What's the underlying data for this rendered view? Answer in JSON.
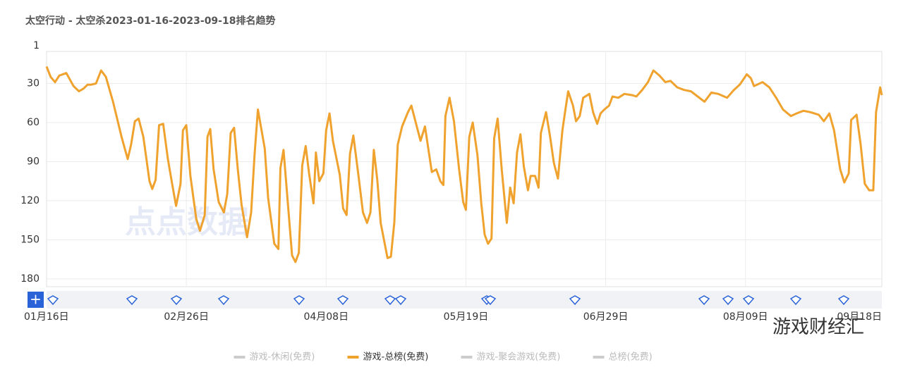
{
  "chart_data": {
    "type": "line",
    "title": "太空行动 - 太空杀2023-01-16-2023-09-18排名趋势",
    "y_inverted": true,
    "grid": true,
    "ylim": [
      0,
      186
    ],
    "yticks": [
      1,
      30,
      60,
      90,
      120,
      150,
      180
    ],
    "xlim": [
      0,
      245
    ],
    "xticks": [
      {
        "value": 0,
        "label": "01月16日"
      },
      {
        "value": 41,
        "label": "02月26日"
      },
      {
        "value": 82,
        "label": "04月08日"
      },
      {
        "value": 123,
        "label": "05月19日"
      },
      {
        "value": 164,
        "label": "06月29日"
      },
      {
        "value": 205,
        "label": "08月09日"
      },
      {
        "value": 245,
        "label": "09月18日"
      }
    ],
    "legend": [
      {
        "name": "游戏-休闲(免费)",
        "color": "#cccccc"
      },
      {
        "name": "游戏-总榜(免费)",
        "color": "#f0a22e"
      },
      {
        "name": "游戏-聚会游戏(免费)",
        "color": "#cccccc"
      },
      {
        "name": "总榜(免费)",
        "color": "#cccccc"
      }
    ],
    "series": [
      {
        "name": "游戏-总榜(免费)",
        "color": "#f0a22e",
        "x": [
          0,
          1.2,
          2.5,
          3.7,
          5.8,
          7.9,
          9.5,
          10.8,
          12,
          13,
          14.5,
          16,
          17.4,
          19.5,
          22,
          23.8,
          24.8,
          25.9,
          27,
          28.4,
          30.2,
          31,
          32,
          33,
          34.2,
          35.6,
          36.9,
          38,
          39.3,
          40,
          41,
          42.2,
          43.9,
          45,
          46.4,
          47.2,
          48,
          49,
          50.5,
          52,
          53,
          54,
          55,
          56.1,
          57.2,
          58.8,
          60,
          61,
          62,
          64,
          65,
          66.8,
          68,
          68.6,
          69.5,
          70.5,
          72,
          73,
          74,
          75,
          76,
          77,
          78.3,
          79,
          80,
          81.2,
          82,
          83,
          84,
          86,
          87,
          88,
          89,
          90,
          91.5,
          92.8,
          94,
          95,
          96,
          97,
          98,
          100,
          101,
          102,
          103,
          104.3,
          106,
          107,
          108.5,
          109.7,
          111,
          113,
          114.3,
          115.5,
          116.4,
          117,
          118.2,
          119.5,
          121,
          122.2,
          123,
          124,
          125,
          126.4,
          127.5,
          128.5,
          129.5,
          130.5,
          131.3,
          132.3,
          133.5,
          135,
          136,
          137,
          138,
          139,
          140,
          141.2,
          142,
          143.3,
          144.3,
          145,
          146.5,
          147.7,
          148.8,
          150,
          151.3,
          152.2,
          153,
          154.4,
          155.3,
          156.4,
          157.4,
          159.2,
          160.3,
          161.5,
          162.5,
          163.6,
          165,
          166,
          167.7,
          169.5,
          171.8,
          173,
          174.7,
          176.4,
          178,
          179.8,
          181.5,
          183,
          185,
          187,
          189,
          191,
          193,
          195,
          197,
          199.6,
          201.6,
          203.3,
          205.4,
          206.6,
          207.5,
          210,
          212,
          214,
          216,
          218.3,
          220,
          222,
          224,
          226.5,
          228,
          229.6,
          231,
          232.8,
          234,
          235.3,
          236,
          237.6,
          238.8,
          240,
          241.3,
          242.5,
          243.3,
          244.5,
          245
        ],
        "values": [
          17,
          25,
          29,
          24,
          22,
          32,
          36,
          34,
          31,
          31,
          30,
          20,
          25,
          44,
          71,
          88,
          77,
          59,
          57,
          71,
          105,
          111,
          104,
          62,
          61,
          88,
          108,
          124,
          107,
          66,
          62,
          101,
          134,
          143,
          131,
          71,
          65,
          96,
          121,
          129,
          115,
          68,
          64,
          96,
          123,
          148,
          129,
          85,
          50,
          80,
          118,
          153,
          157,
          95,
          81,
          113,
          162,
          167,
          160,
          93,
          78,
          99,
          122,
          83,
          105,
          99,
          66,
          53,
          74,
          100,
          126,
          131,
          84,
          70,
          101,
          129,
          137,
          129,
          81,
          104,
          137,
          164,
          163,
          137,
          77,
          63,
          52,
          47,
          62,
          74,
          63,
          98,
          96,
          105,
          108,
          55,
          41,
          59,
          96,
          121,
          127,
          71,
          60,
          85,
          122,
          146,
          153,
          149,
          72,
          57,
          96,
          137,
          110,
          122,
          83,
          69,
          94,
          112,
          101,
          101,
          110,
          68,
          52,
          71,
          91,
          103,
          66,
          50,
          36,
          47,
          59,
          55,
          41,
          38,
          52,
          61,
          53,
          50,
          47,
          40,
          41,
          38,
          39,
          40,
          35,
          29,
          20,
          24,
          29,
          28,
          33,
          35,
          36,
          40,
          44,
          37,
          38,
          41,
          35,
          31,
          23,
          26,
          32,
          29,
          33,
          41,
          50,
          55,
          53,
          51,
          52,
          54,
          59,
          53,
          66,
          96,
          106,
          99,
          58,
          54,
          77,
          107,
          112,
          112,
          52,
          33,
          39
        ]
      }
    ],
    "watermarks": [
      "点点数据",
      "游戏财经汇"
    ]
  }
}
